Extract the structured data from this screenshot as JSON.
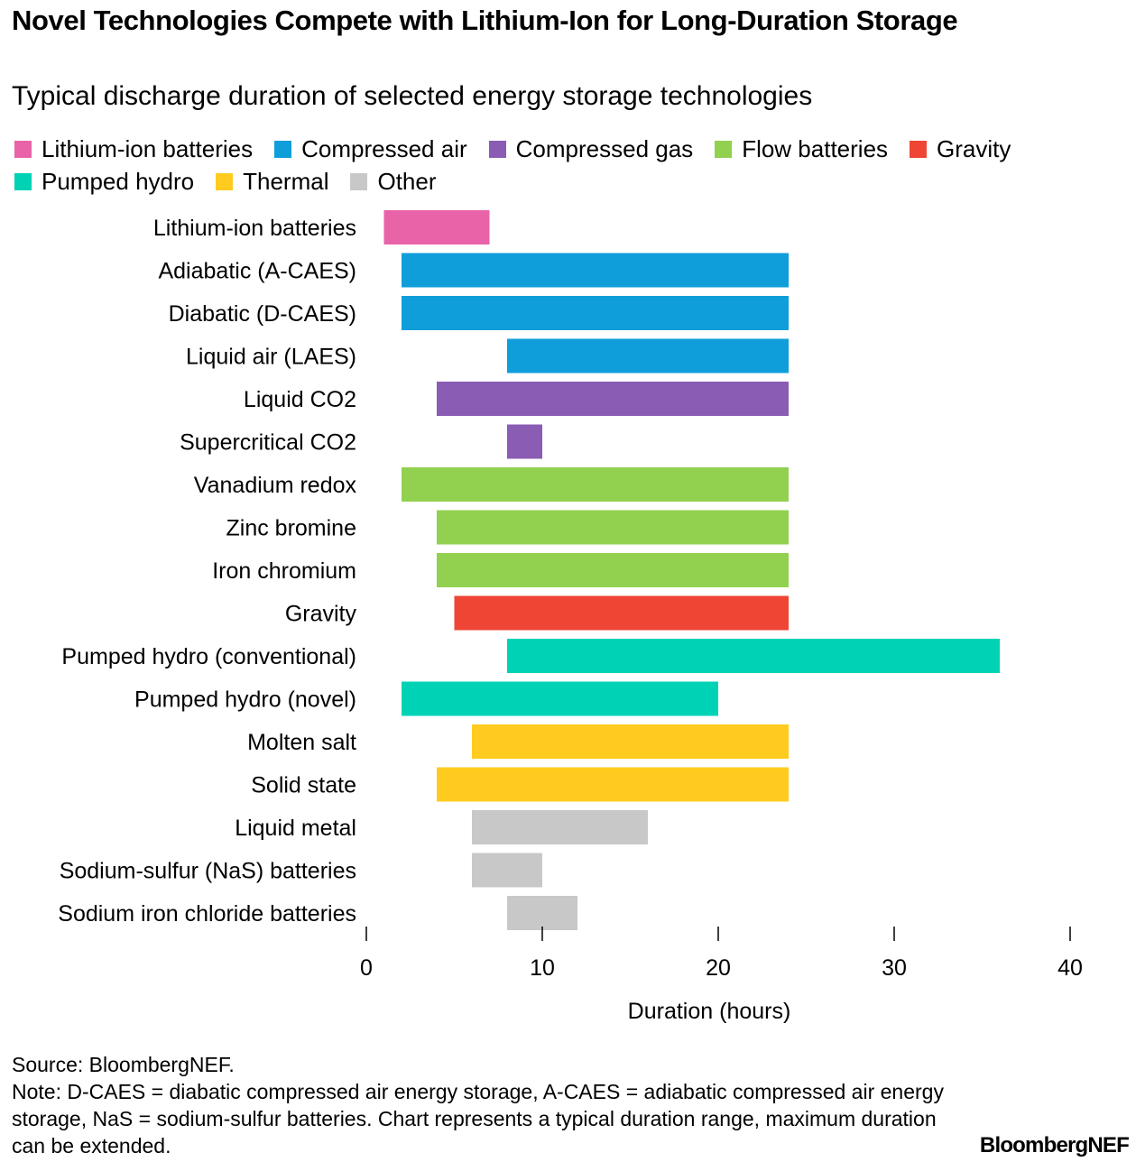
{
  "title": "Novel Technologies Compete with Lithium-Ion for Long-Duration Storage",
  "subtitle": "Typical discharge duration of selected energy storage technologies",
  "legend": [
    {
      "label": "Lithium-ion batteries",
      "color": "#E963A8"
    },
    {
      "label": "Compressed air",
      "color": "#109EDB"
    },
    {
      "label": "Compressed gas",
      "color": "#8A5CB4"
    },
    {
      "label": "Flow batteries",
      "color": "#92D050"
    },
    {
      "label": "Gravity",
      "color": "#EE4535"
    },
    {
      "label": "Pumped hydro",
      "color": "#00D3B5"
    },
    {
      "label": "Thermal",
      "color": "#FFCB1E"
    },
    {
      "label": "Other",
      "color": "#C8C8C8"
    }
  ],
  "chart_data": {
    "type": "bar",
    "orientation": "horizontal-range",
    "xlabel": "Duration (hours)",
    "xlim": [
      0,
      40
    ],
    "xticks": [
      0,
      10,
      20,
      30,
      40
    ],
    "categories": [
      "Lithium-ion batteries",
      "Adiabatic (A-CAES)",
      "Diabatic (D-CAES)",
      "Liquid air (LAES)",
      "Liquid CO2",
      "Supercritical CO2",
      "Vanadium redox",
      "Zinc bromine",
      "Iron chromium",
      "Gravity",
      "Pumped hydro (conventional)",
      "Pumped hydro (novel)",
      "Molten salt",
      "Solid state",
      "Liquid metal",
      "Sodium-sulfur (NaS) batteries",
      "Sodium iron chloride batteries"
    ],
    "ranges": [
      [
        1,
        7
      ],
      [
        2,
        24
      ],
      [
        2,
        24
      ],
      [
        8,
        24
      ],
      [
        4,
        24
      ],
      [
        8,
        10
      ],
      [
        2,
        24
      ],
      [
        4,
        24
      ],
      [
        4,
        24
      ],
      [
        5,
        24
      ],
      [
        8,
        36
      ],
      [
        2,
        20
      ],
      [
        6,
        24
      ],
      [
        4,
        24
      ],
      [
        6,
        16
      ],
      [
        6,
        10
      ],
      [
        8,
        12
      ]
    ],
    "groups": [
      "Lithium-ion batteries",
      "Compressed air",
      "Compressed air",
      "Compressed air",
      "Compressed gas",
      "Compressed gas",
      "Flow batteries",
      "Flow batteries",
      "Flow batteries",
      "Gravity",
      "Pumped hydro",
      "Pumped hydro",
      "Thermal",
      "Thermal",
      "Other",
      "Other",
      "Other"
    ]
  },
  "footer": {
    "source": "Source: BloombergNEF.",
    "note": "Note: D-CAES = diabatic compressed air energy storage, A-CAES = adiabatic compressed air energy storage, NaS = sodium-sulfur batteries. Chart represents a typical duration range, maximum duration can be extended."
  },
  "brand": "BloombergNEF"
}
